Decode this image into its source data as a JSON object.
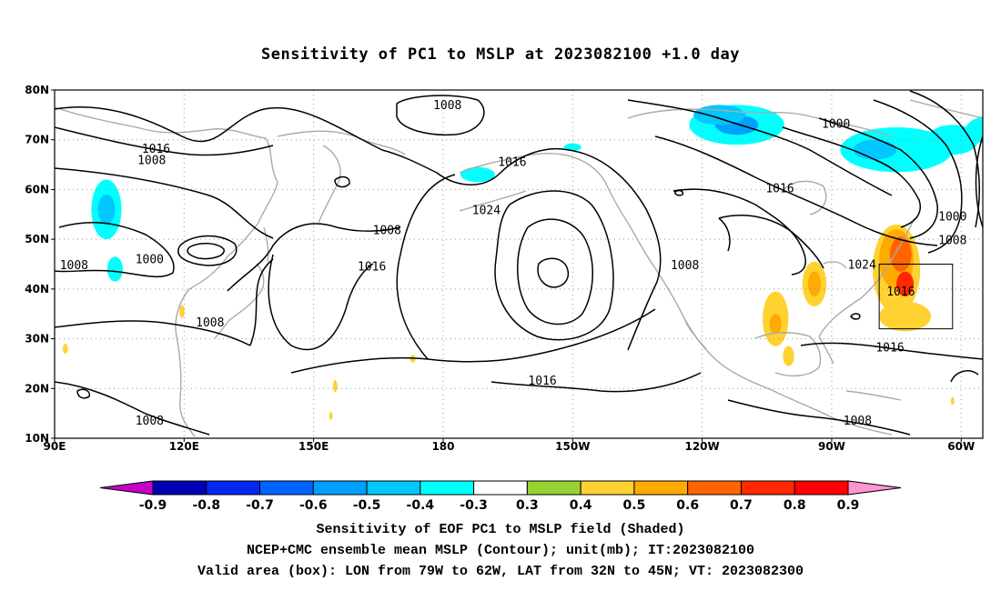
{
  "title": "Sensitivity of PC1 to MSLP at 2023082100 +1.0 day",
  "captions": [
    "Sensitivity of EOF PC1 to MSLP field (Shaded)",
    "NCEP+CMC ensemble mean MSLP (Contour); unit(mb); IT:2023082100",
    "Valid area (box): LON from 79W to 62W, LAT from 32N to 45N; VT: 2023082300"
  ],
  "map": {
    "lon_ticks": [
      "90E",
      "120E",
      "150E",
      "180",
      "150W",
      "120W",
      "90W",
      "60W"
    ],
    "lat_ticks": [
      "80N",
      "70N",
      "60N",
      "50N",
      "40N",
      "30N",
      "20N",
      "10N"
    ],
    "valid_box": {
      "lon_west": -79,
      "lon_east": -62,
      "lat_south": 32,
      "lat_north": 45
    },
    "contour_labels": [
      {
        "text": "1008",
        "lon": 181,
        "lat": 76.8
      },
      {
        "text": "1000",
        "lon": -89,
        "lat": 73.1
      },
      {
        "text": "1016",
        "lon": 113.5,
        "lat": 68.0
      },
      {
        "text": "1008",
        "lon": 112.5,
        "lat": 65.7
      },
      {
        "text": "1016",
        "lon": -164,
        "lat": 65.4
      },
      {
        "text": "1016",
        "lon": -102,
        "lat": 60.1
      },
      {
        "text": "1024",
        "lon": -170,
        "lat": 55.7
      },
      {
        "text": "1000",
        "lon": -62,
        "lat": 54.4
      },
      {
        "text": "1008",
        "lon": 167,
        "lat": 51.7
      },
      {
        "text": "1008",
        "lon": -62,
        "lat": 49.7
      },
      {
        "text": "1000",
        "lon": 112,
        "lat": 45.8
      },
      {
        "text": "1008",
        "lon": 94.5,
        "lat": 44.6
      },
      {
        "text": "1016",
        "lon": 163.5,
        "lat": 44.4
      },
      {
        "text": "1008",
        "lon": -124,
        "lat": 44.6
      },
      {
        "text": "1024",
        "lon": -83,
        "lat": 44.7
      },
      {
        "text": "1016",
        "lon": -74,
        "lat": 39.3
      },
      {
        "text": "1008",
        "lon": 126,
        "lat": 33.1
      },
      {
        "text": "1016",
        "lon": -76.5,
        "lat": 28.1
      },
      {
        "text": "1016",
        "lon": -157,
        "lat": 21.4
      },
      {
        "text": "1008",
        "lon": 112,
        "lat": 13.4
      },
      {
        "text": "1008",
        "lon": -84,
        "lat": 13.4
      }
    ],
    "pressure_centers": [
      {
        "kind": "high",
        "lon": -152,
        "lat": 40,
        "value": 1024
      },
      {
        "kind": "low",
        "lon": 126,
        "lat": 48,
        "value": 1000
      }
    ],
    "shading_patches": [
      {
        "lon": -112,
        "lat": 73,
        "rx": 11,
        "ry": 4,
        "value": -0.4
      },
      {
        "lon": -112,
        "lat": 73,
        "rx": 5,
        "ry": 2,
        "value": -0.6
      },
      {
        "lon": -116,
        "lat": 75,
        "rx": 6,
        "ry": 2,
        "value": -0.5
      },
      {
        "lon": -75,
        "lat": 68,
        "rx": 13,
        "ry": 4.5,
        "value": -0.4
      },
      {
        "lon": -80,
        "lat": 68,
        "rx": 5,
        "ry": 2,
        "value": -0.5
      },
      {
        "lon": -62,
        "lat": 70,
        "rx": 6,
        "ry": 3,
        "value": -0.4
      },
      {
        "lon": -52,
        "lat": 72,
        "rx": 7,
        "ry": 3,
        "value": -0.4
      },
      {
        "lon": 102,
        "lat": 56,
        "rx": 3.5,
        "ry": 6,
        "value": -0.4
      },
      {
        "lon": 102,
        "lat": 56,
        "rx": 2,
        "ry": 3,
        "value": -0.5
      },
      {
        "lon": 104,
        "lat": 44,
        "rx": 1.8,
        "ry": 2.5,
        "value": -0.4
      },
      {
        "lon": -172,
        "lat": 63,
        "rx": 4,
        "ry": 1.5,
        "value": -0.4
      },
      {
        "lon": -150,
        "lat": 68.5,
        "rx": 2,
        "ry": 0.8,
        "value": -0.4
      },
      {
        "lon": -75,
        "lat": 44,
        "rx": 5.5,
        "ry": 9,
        "value": 0.4
      },
      {
        "lon": -75,
        "lat": 46,
        "rx": 4,
        "ry": 6,
        "value": 0.5
      },
      {
        "lon": -74,
        "lat": 47,
        "rx": 2.5,
        "ry": 3.5,
        "value": 0.6
      },
      {
        "lon": -73,
        "lat": 41,
        "rx": 2,
        "ry": 2.5,
        "value": 0.7
      },
      {
        "lon": -73,
        "lat": 34.5,
        "rx": 6,
        "ry": 3,
        "value": 0.4
      },
      {
        "lon": -94,
        "lat": 41,
        "rx": 2.8,
        "ry": 4.5,
        "value": 0.4
      },
      {
        "lon": -94,
        "lat": 41,
        "rx": 1.5,
        "ry": 2.5,
        "value": 0.5
      },
      {
        "lon": -103,
        "lat": 34,
        "rx": 3,
        "ry": 5.5,
        "value": 0.4
      },
      {
        "lon": -103,
        "lat": 33,
        "rx": 1.4,
        "ry": 2,
        "value": 0.5
      },
      {
        "lon": -100,
        "lat": 26.5,
        "rx": 1.3,
        "ry": 2,
        "value": 0.4
      },
      {
        "lon": 119.5,
        "lat": 35.5,
        "rx": 0.6,
        "ry": 1.3,
        "value": 0.4
      },
      {
        "lon": 92.5,
        "lat": 28,
        "rx": 0.6,
        "ry": 1,
        "value": 0.4
      },
      {
        "lon": 173,
        "lat": 26,
        "rx": 0.6,
        "ry": 0.8,
        "value": 0.4
      },
      {
        "lon": 155,
        "lat": 20.5,
        "rx": 0.5,
        "ry": 1.2,
        "value": 0.4
      },
      {
        "lon": 154,
        "lat": 14.5,
        "rx": 0.4,
        "ry": 0.8,
        "value": 0.4
      },
      {
        "lon": -62,
        "lat": 17.5,
        "rx": 0.4,
        "ry": 0.8,
        "value": 0.4
      }
    ]
  },
  "colorbar": {
    "labels": [
      "-0.9",
      "-0.8",
      "-0.7",
      "-0.6",
      "-0.5",
      "-0.4",
      "-0.3",
      "0.3",
      "0.4",
      "0.5",
      "0.6",
      "0.7",
      "0.8",
      "0.9"
    ],
    "colors": [
      "#0000b4",
      "#0028f0",
      "#0064ff",
      "#00a0ff",
      "#00c8ff",
      "#00ffff",
      "#ffffff",
      "#96d232",
      "#ffd232",
      "#ffaa00",
      "#ff6400",
      "#ff2800",
      "#ff0000"
    ],
    "end_low_color": "#c800c8",
    "end_high_color": "#ff96d2"
  }
}
